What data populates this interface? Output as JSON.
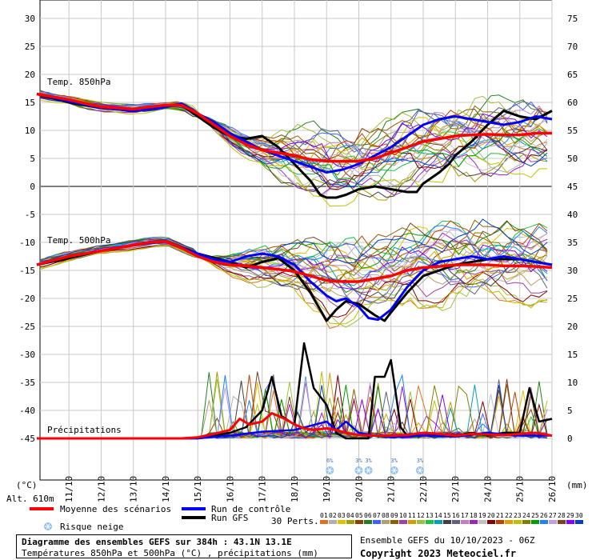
{
  "chart_data": {
    "type": "line",
    "panels": {
      "t850": {
        "label": "Temp. 850hPa"
      },
      "t500": {
        "label": "Temp. 500hPa"
      },
      "precip": {
        "label": "Précipitations"
      }
    },
    "y_left_ticks": [
      30,
      25,
      20,
      15,
      10,
      5,
      0,
      -5,
      -10,
      -15,
      -20,
      -25,
      -30,
      -35,
      -40,
      -45
    ],
    "y_right_ticks": [
      75,
      70,
      65,
      60,
      55,
      50,
      45,
      40,
      35,
      30,
      25,
      20,
      15,
      10,
      5,
      0
    ],
    "y_left_unit": "(°C)",
    "y_right_unit": "(mm)",
    "altitude": "Alt. 610m",
    "x_ticks": [
      "11/10",
      "12/10",
      "13/10",
      "14/10",
      "15/10",
      "16/10",
      "17/10",
      "18/10",
      "19/10",
      "20/10",
      "21/10",
      "22/10",
      "23/10",
      "24/10",
      "25/10",
      "26/10"
    ],
    "snow_risk": [
      {
        "day": 19.1,
        "label": "6%"
      },
      {
        "day": 20.0,
        "label": "3%"
      },
      {
        "day": 20.3,
        "label": "3%"
      },
      {
        "day": 21.1,
        "label": "3%"
      },
      {
        "day": 21.9,
        "label": "3%"
      }
    ],
    "series": [
      {
        "name": "Moyenne des scénarios",
        "color": "#ff0000",
        "t850": [
          [
            10.0,
            16.5
          ],
          [
            10.5,
            16.0
          ],
          [
            11.0,
            15.5
          ],
          [
            11.5,
            14.8
          ],
          [
            12.0,
            14.2
          ],
          [
            12.5,
            14.0
          ],
          [
            13.0,
            13.8
          ],
          [
            13.5,
            14.2
          ],
          [
            14.0,
            14.5
          ],
          [
            14.5,
            14.5
          ],
          [
            15.0,
            13.0
          ],
          [
            15.5,
            11.0
          ],
          [
            16.0,
            9.0
          ],
          [
            16.5,
            7.5
          ],
          [
            17.0,
            6.5
          ],
          [
            17.5,
            6.0
          ],
          [
            18.0,
            5.5
          ],
          [
            18.5,
            4.8
          ],
          [
            19.0,
            4.5
          ],
          [
            19.5,
            4.5
          ],
          [
            20.0,
            4.5
          ],
          [
            20.5,
            5.0
          ],
          [
            21.0,
            6.0
          ],
          [
            21.5,
            7.0
          ],
          [
            22.0,
            8.0
          ],
          [
            22.5,
            8.5
          ],
          [
            23.0,
            9.0
          ],
          [
            23.5,
            9.2
          ],
          [
            24.0,
            9.3
          ],
          [
            24.5,
            9.2
          ],
          [
            25.0,
            9.2
          ],
          [
            25.5,
            9.5
          ],
          [
            26.0,
            9.5
          ]
        ],
        "t500": [
          [
            10.0,
            -14.0
          ],
          [
            10.5,
            -13.2
          ],
          [
            11.0,
            -12.5
          ],
          [
            11.5,
            -12.0
          ],
          [
            12.0,
            -11.5
          ],
          [
            12.5,
            -11.0
          ],
          [
            13.0,
            -10.5
          ],
          [
            13.5,
            -10.0
          ],
          [
            14.0,
            -9.8
          ],
          [
            14.5,
            -11.0
          ],
          [
            15.0,
            -12.5
          ],
          [
            15.5,
            -13.5
          ],
          [
            16.0,
            -14.0
          ],
          [
            16.5,
            -14.2
          ],
          [
            17.0,
            -14.5
          ],
          [
            17.5,
            -14.8
          ],
          [
            18.0,
            -15.2
          ],
          [
            18.5,
            -16.0
          ],
          [
            19.0,
            -16.8
          ],
          [
            19.5,
            -17.0
          ],
          [
            20.0,
            -17.0
          ],
          [
            20.5,
            -16.5
          ],
          [
            21.0,
            -16.0
          ],
          [
            21.5,
            -15.0
          ],
          [
            22.0,
            -14.5
          ],
          [
            22.5,
            -14.3
          ],
          [
            23.0,
            -14.0
          ],
          [
            23.5,
            -14.0
          ],
          [
            24.0,
            -14.0
          ],
          [
            24.5,
            -14.2
          ],
          [
            25.0,
            -14.2
          ],
          [
            25.5,
            -14.3
          ],
          [
            26.0,
            -14.5
          ]
        ],
        "precip": [
          [
            10.0,
            0
          ],
          [
            14.5,
            0
          ],
          [
            15.0,
            0.2
          ],
          [
            15.5,
            0.8
          ],
          [
            16.0,
            1.5
          ],
          [
            16.3,
            3.5
          ],
          [
            16.6,
            2.5
          ],
          [
            17.0,
            3.0
          ],
          [
            17.3,
            4.5
          ],
          [
            17.7,
            3.5
          ],
          [
            18.0,
            2.5
          ],
          [
            18.3,
            1.8
          ],
          [
            18.6,
            1.5
          ],
          [
            19.0,
            1.8
          ],
          [
            19.3,
            1.5
          ],
          [
            19.6,
            1.0
          ],
          [
            20.0,
            0.6
          ],
          [
            20.5,
            0.5
          ],
          [
            21.0,
            0.5
          ],
          [
            21.5,
            0.6
          ],
          [
            22.0,
            1.0
          ],
          [
            22.5,
            0.8
          ],
          [
            23.0,
            0.5
          ],
          [
            23.5,
            0.8
          ],
          [
            24.0,
            0.7
          ],
          [
            24.5,
            0.6
          ],
          [
            25.0,
            0.8
          ],
          [
            25.5,
            1.0
          ],
          [
            26.0,
            0.5
          ]
        ]
      },
      {
        "name": "Run de contrôle",
        "color": "#0000ff",
        "t850": [
          [
            10.0,
            16.5
          ],
          [
            11.0,
            15.2
          ],
          [
            12.0,
            14.0
          ],
          [
            13.0,
            13.5
          ],
          [
            14.0,
            14.2
          ],
          [
            14.5,
            14.8
          ],
          [
            15.0,
            13.0
          ],
          [
            15.5,
            11.5
          ],
          [
            16.0,
            9.5
          ],
          [
            16.5,
            8.0
          ],
          [
            17.0,
            6.5
          ],
          [
            17.5,
            5.5
          ],
          [
            18.0,
            4.5
          ],
          [
            18.5,
            3.5
          ],
          [
            19.0,
            2.5
          ],
          [
            19.5,
            3.0
          ],
          [
            20.0,
            4.0
          ],
          [
            20.5,
            5.5
          ],
          [
            21.0,
            7.0
          ],
          [
            21.5,
            9.0
          ],
          [
            22.0,
            11.0
          ],
          [
            22.5,
            12.0
          ],
          [
            23.0,
            12.5
          ],
          [
            23.5,
            12.0
          ],
          [
            24.0,
            11.5
          ],
          [
            24.5,
            11.0
          ],
          [
            25.0,
            11.5
          ],
          [
            25.5,
            12.5
          ],
          [
            26.0,
            12.0
          ]
        ],
        "t500": [
          [
            10.0,
            -14.0
          ],
          [
            11.0,
            -12.5
          ],
          [
            12.0,
            -11.5
          ],
          [
            13.0,
            -10.5
          ],
          [
            14.0,
            -9.8
          ],
          [
            15.0,
            -12.0
          ],
          [
            15.5,
            -13.0
          ],
          [
            16.0,
            -13.5
          ],
          [
            16.5,
            -12.5
          ],
          [
            17.0,
            -12.0
          ],
          [
            17.5,
            -12.5
          ],
          [
            18.0,
            -14.0
          ],
          [
            18.5,
            -17.0
          ],
          [
            19.0,
            -19.5
          ],
          [
            19.3,
            -20.5
          ],
          [
            19.6,
            -20.0
          ],
          [
            20.0,
            -21.5
          ],
          [
            20.3,
            -23.5
          ],
          [
            20.6,
            -23.8
          ],
          [
            21.0,
            -22.0
          ],
          [
            21.5,
            -18.0
          ],
          [
            22.0,
            -15.0
          ],
          [
            22.5,
            -13.5
          ],
          [
            23.0,
            -13.0
          ],
          [
            23.5,
            -12.5
          ],
          [
            24.0,
            -13.0
          ],
          [
            24.5,
            -12.5
          ],
          [
            25.0,
            -13.0
          ],
          [
            25.5,
            -13.5
          ],
          [
            26.0,
            -14.0
          ]
        ],
        "precip": [
          [
            10.0,
            0
          ],
          [
            15.0,
            0
          ],
          [
            16.0,
            0.5
          ],
          [
            17.0,
            1.2
          ],
          [
            18.0,
            1.5
          ],
          [
            19.0,
            3.0
          ],
          [
            19.3,
            1.5
          ],
          [
            19.6,
            3.0
          ],
          [
            20.0,
            1.0
          ],
          [
            20.5,
            0.5
          ],
          [
            21.0,
            0.2
          ],
          [
            22.0,
            0.5
          ],
          [
            23.0,
            0.3
          ],
          [
            24.0,
            1.0
          ],
          [
            25.0,
            0.5
          ],
          [
            26.0,
            0.5
          ]
        ]
      },
      {
        "name": "Run GFS",
        "color": "#000000",
        "t850": [
          [
            10.0,
            16.5
          ],
          [
            11.0,
            15.0
          ],
          [
            12.0,
            14.0
          ],
          [
            13.0,
            13.5
          ],
          [
            14.0,
            14.5
          ],
          [
            14.5,
            14.5
          ],
          [
            15.0,
            12.5
          ],
          [
            15.5,
            10.5
          ],
          [
            16.0,
            9.0
          ],
          [
            16.5,
            8.5
          ],
          [
            17.0,
            9.0
          ],
          [
            17.5,
            7.0
          ],
          [
            18.0,
            4.0
          ],
          [
            18.5,
            1.0
          ],
          [
            18.8,
            -1.5
          ],
          [
            19.0,
            -2.0
          ],
          [
            19.3,
            -2.0
          ],
          [
            19.6,
            -1.5
          ],
          [
            20.0,
            -0.5
          ],
          [
            20.5,
            0
          ],
          [
            21.0,
            -0.5
          ],
          [
            21.5,
            -1.0
          ],
          [
            21.8,
            -1.0
          ],
          [
            22.0,
            0.5
          ],
          [
            22.5,
            2.5
          ],
          [
            22.8,
            4.0
          ],
          [
            23.0,
            5.5
          ],
          [
            23.5,
            8.0
          ],
          [
            24.0,
            11.0
          ],
          [
            24.5,
            13.5
          ],
          [
            25.0,
            12.5
          ],
          [
            25.5,
            12.0
          ],
          [
            26.0,
            13.5
          ]
        ],
        "t500": [
          [
            10.0,
            -14.0
          ],
          [
            11.0,
            -12.8
          ],
          [
            12.0,
            -11.5
          ],
          [
            13.0,
            -10.5
          ],
          [
            14.0,
            -9.8
          ],
          [
            15.0,
            -12.0
          ],
          [
            16.0,
            -13.5
          ],
          [
            16.5,
            -14.5
          ],
          [
            17.0,
            -13.5
          ],
          [
            17.5,
            -12.8
          ],
          [
            18.0,
            -15.0
          ],
          [
            18.5,
            -19.0
          ],
          [
            19.0,
            -24.0
          ],
          [
            19.3,
            -22.0
          ],
          [
            19.6,
            -20.5
          ],
          [
            20.0,
            -21.0
          ],
          [
            20.5,
            -23.0
          ],
          [
            20.8,
            -24.0
          ],
          [
            21.0,
            -22.5
          ],
          [
            21.5,
            -19.0
          ],
          [
            22.0,
            -16.0
          ],
          [
            22.5,
            -15.0
          ],
          [
            23.0,
            -14.0
          ],
          [
            23.5,
            -13.5
          ],
          [
            24.0,
            -13.0
          ],
          [
            24.5,
            -13.0
          ],
          [
            25.0,
            -13.0
          ],
          [
            25.5,
            -13.5
          ],
          [
            26.0,
            -14.0
          ]
        ],
        "precip": [
          [
            10.0,
            0
          ],
          [
            15.0,
            0
          ],
          [
            15.5,
            0.5
          ],
          [
            16.0,
            1.0
          ],
          [
            16.5,
            2.0
          ],
          [
            17.0,
            5.0
          ],
          [
            17.3,
            11.0
          ],
          [
            17.6,
            4.0
          ],
          [
            18.0,
            2.5
          ],
          [
            18.3,
            17.0
          ],
          [
            18.6,
            9.0
          ],
          [
            19.0,
            6.0
          ],
          [
            19.3,
            1.0
          ],
          [
            19.6,
            0
          ],
          [
            20.0,
            0
          ],
          [
            20.3,
            0
          ],
          [
            20.5,
            11.0
          ],
          [
            20.8,
            11.0
          ],
          [
            21.0,
            14.0
          ],
          [
            21.3,
            2.0
          ],
          [
            21.5,
            0.5
          ],
          [
            22.0,
            1.0
          ],
          [
            22.5,
            0.5
          ],
          [
            23.0,
            0.5
          ],
          [
            23.5,
            1.0
          ],
          [
            24.0,
            0.5
          ],
          [
            24.5,
            1.0
          ],
          [
            25.0,
            1.0
          ],
          [
            25.3,
            9.0
          ],
          [
            25.6,
            3.0
          ],
          [
            26.0,
            3.5
          ]
        ]
      }
    ],
    "members_label": "30 Perts.",
    "members": [
      "01",
      "02",
      "03",
      "04",
      "05",
      "06",
      "07",
      "08",
      "09",
      "10",
      "11",
      "12",
      "13",
      "14",
      "15",
      "16",
      "17",
      "18",
      "19",
      "20",
      "21",
      "22",
      "23",
      "24",
      "25",
      "26",
      "27",
      "28",
      "29",
      "30"
    ],
    "member_colors": [
      "#e07020",
      "#b0b0b0",
      "#e0c000",
      "#a0a000",
      "#8a4000",
      "#208020",
      "#4060ff",
      "#b0a070",
      "#8c6000",
      "#a040a0",
      "#d0a000",
      "#a0c040",
      "#20c040",
      "#00a0c0",
      "#404040",
      "#606080",
      "#c080c0",
      "#a020c0",
      "#c0c0c0",
      "#800000",
      "#c04000",
      "#e0a000",
      "#c0c000",
      "#808000",
      "#00a000",
      "#2080ff",
      "#c0a0e0",
      "#804020",
      "#8000ff",
      "#0040c0"
    ]
  },
  "legend": {
    "mean": "Moyenne des scénarios",
    "control": "Run de contrôle",
    "gfs": "Run GFS",
    "snow": "Risque neige"
  },
  "info": {
    "title": "Diagramme des ensembles GEFS sur 384h : 43.1N 13.1E",
    "subtitle": "Températures 850hPa et 500hPa (°C) , précipitations (mm)",
    "run": "Ensemble GEFS du 10/10/2023 - 06Z",
    "copyright": "Copyright 2023 Meteociel.fr"
  }
}
